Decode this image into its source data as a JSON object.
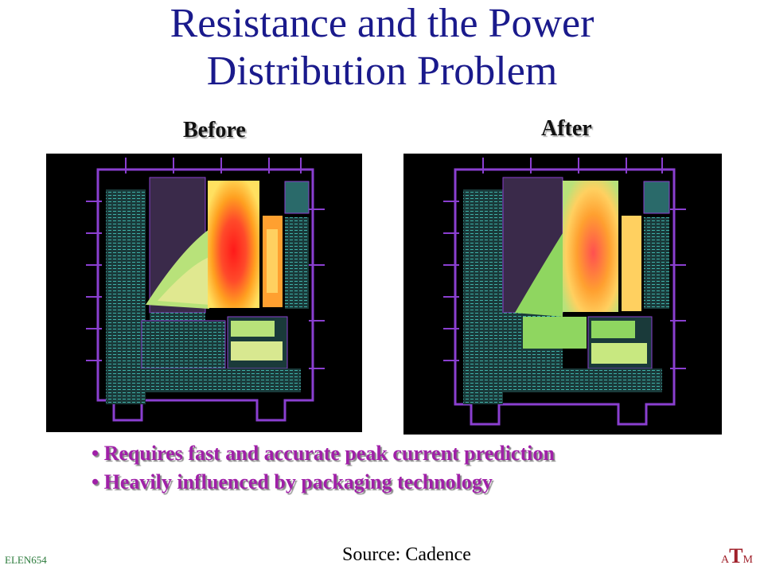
{
  "title": {
    "line1": "Resistance and the Power",
    "line2": "Distribution Problem"
  },
  "labels": {
    "before": "Before",
    "after": "After"
  },
  "bullets": [
    "Requires fast and accurate peak current prediction",
    "Heavily influenced by packaging technology"
  ],
  "footer": {
    "course": "ELEN654",
    "source": "Source: Cadence"
  },
  "logo": {
    "left": "A",
    "middle": "T",
    "right": "M"
  },
  "colors": {
    "title": "#1a1a8c",
    "bullets": "#a020a8",
    "wiring": "#8a3fd0",
    "heat_hot": "#ff2020",
    "heat_warm": "#ffb020",
    "heat_cool": "#8fd660"
  }
}
